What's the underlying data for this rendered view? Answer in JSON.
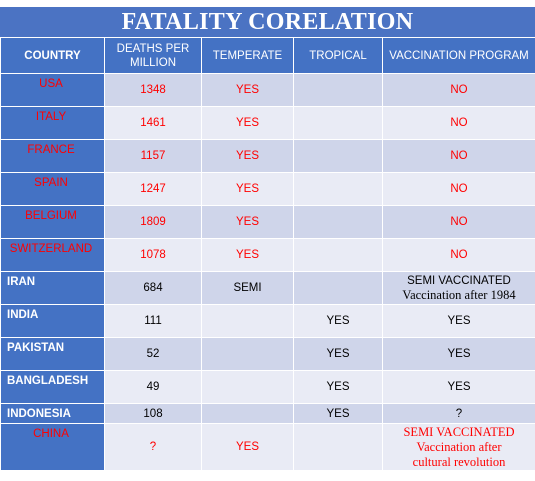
{
  "title": "FATALITY CORELATION",
  "headers": [
    "COUNTRY",
    "DEATHS PER MILLION",
    "TEMPERATE",
    "TROPICAL",
    "VACCINATION PROGRAM"
  ],
  "rows": [
    {
      "country": "USA",
      "deaths": "1348",
      "temperate": "YES",
      "tropical": "",
      "vaccination": [
        "NO"
      ],
      "red": true
    },
    {
      "country": "ITALY",
      "deaths": "1461",
      "temperate": "YES",
      "tropical": "",
      "vaccination": [
        "NO"
      ],
      "red": true
    },
    {
      "country": "FRANCE",
      "deaths": "1157",
      "temperate": "YES",
      "tropical": "",
      "vaccination": [
        "NO"
      ],
      "red": true
    },
    {
      "country": "SPAIN",
      "deaths": "1247",
      "temperate": "YES",
      "tropical": "",
      "vaccination": [
        "NO"
      ],
      "red": true
    },
    {
      "country": "BELGIUM",
      "deaths": "1809",
      "temperate": "YES",
      "tropical": "",
      "vaccination": [
        "NO"
      ],
      "red": true
    },
    {
      "country": "SWITZERLAND",
      "deaths": "1078",
      "temperate": "YES",
      "tropical": "",
      "vaccination": [
        "NO"
      ],
      "red": true
    },
    {
      "country": "IRAN",
      "deaths": "684",
      "temperate": "SEMI",
      "tropical": "",
      "vaccination": [
        "SEMI VACCINATED",
        "Vaccination after 1984"
      ],
      "red": false
    },
    {
      "country": "INDIA",
      "deaths": "111",
      "temperate": "",
      "tropical": "YES",
      "vaccination": [
        "YES"
      ],
      "red": false
    },
    {
      "country": "PAKISTAN",
      "deaths": "52",
      "temperate": "",
      "tropical": "YES",
      "vaccination": [
        "YES"
      ],
      "red": false
    },
    {
      "country": "BANGLADESH",
      "deaths": "49",
      "temperate": "",
      "tropical": "YES",
      "vaccination": [
        "YES"
      ],
      "red": false
    },
    {
      "country": "INDONESIA",
      "deaths": "108",
      "temperate": "",
      "tropical": "YES",
      "vaccination": [
        "?"
      ],
      "red": false
    },
    {
      "country": "CHINA",
      "deaths": "?",
      "temperate": "YES",
      "tropical": "",
      "vaccination": [
        "SEMI VACCINATED",
        "Vaccination after",
        "cultural revolution"
      ],
      "red": true
    }
  ]
}
